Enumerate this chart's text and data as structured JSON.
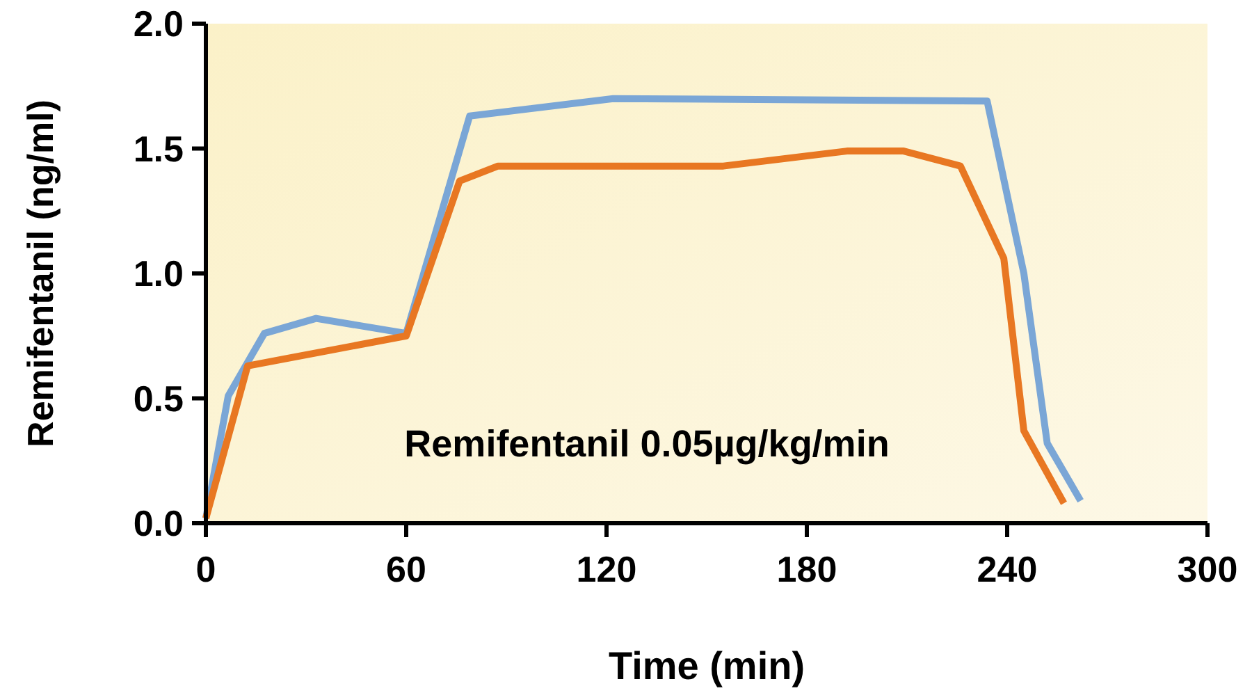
{
  "chart_data": {
    "type": "line",
    "xlabel": "Time (min)",
    "ylabel": "Remifentanil (ng/ml)",
    "xlim": [
      0,
      300
    ],
    "xticks": [
      0,
      60,
      120,
      180,
      240,
      300
    ],
    "ylim": [
      0,
      2
    ],
    "yticks": [
      {
        "value": 0,
        "label": "0.0"
      },
      {
        "value": 0.5,
        "label": "0.5"
      },
      {
        "value": 1,
        "label": "1.0"
      },
      {
        "value": 1.5,
        "label": "1.5"
      },
      {
        "value": 2,
        "label": "2.0"
      }
    ],
    "grid": false,
    "marker": "none",
    "line_style": "solid",
    "annotations": [
      "Remifentanil 0.05µg/kg/min"
    ],
    "series": [
      {
        "color": "#7aa6d6",
        "x": [
          0,
          6.7,
          17.5,
          33,
          60,
          79,
          122,
          234,
          245,
          252,
          262
        ],
        "values": [
          0.02,
          0.51,
          0.76,
          0.82,
          0.76,
          1.63,
          1.7,
          1.69,
          1.0,
          0.32,
          0.09
        ]
      },
      {
        "color": "#e87722",
        "x": [
          0,
          12.5,
          60,
          76,
          87.5,
          155,
          192,
          209,
          226,
          239,
          245,
          257
        ],
        "values": [
          0.02,
          0.63,
          0.75,
          1.37,
          1.43,
          1.43,
          1.49,
          1.49,
          1.43,
          1.06,
          0.37,
          0.08
        ]
      }
    ]
  }
}
